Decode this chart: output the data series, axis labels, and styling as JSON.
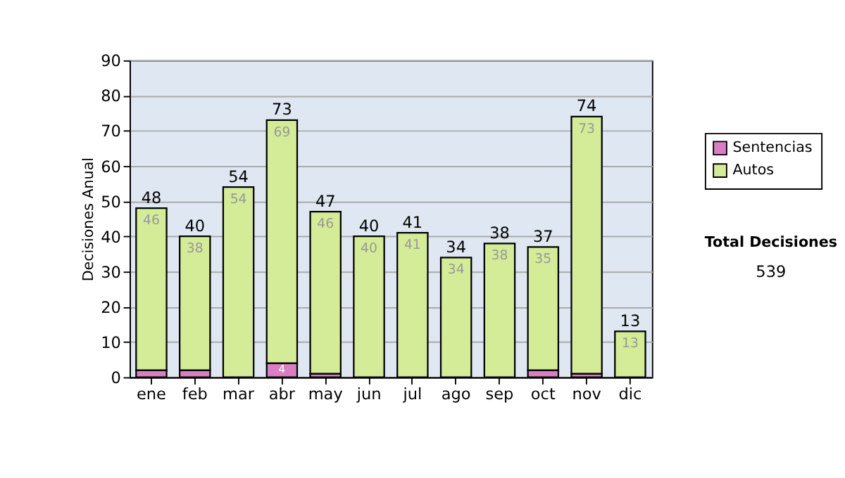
{
  "chart_data": {
    "type": "bar",
    "stacked": true,
    "ylabel": "Decisiones Anual",
    "categories": [
      "ene",
      "feb",
      "mar",
      "abr",
      "may",
      "jun",
      "jul",
      "ago",
      "sep",
      "oct",
      "nov",
      "dic"
    ],
    "series": [
      {
        "name": "Sentencias",
        "color": "#d87fc4",
        "values": [
          2,
          2,
          0,
          4,
          1,
          0,
          0,
          0,
          0,
          2,
          1,
          0
        ],
        "value_labels": [
          null,
          null,
          null,
          "4",
          null,
          null,
          null,
          null,
          null,
          null,
          null,
          null
        ]
      },
      {
        "name": "Autos",
        "color": "#d4eb98",
        "values": [
          46,
          38,
          54,
          69,
          46,
          40,
          41,
          34,
          38,
          35,
          73,
          13
        ],
        "value_labels": [
          "46",
          "38",
          "54",
          "69",
          "46",
          "40",
          "41",
          "34",
          "38",
          "35",
          "73",
          "13"
        ]
      }
    ],
    "totals": [
      "48",
      "40",
      "54",
      "73",
      "47",
      "40",
      "41",
      "34",
      "38",
      "37",
      "74",
      "13"
    ],
    "ylim": [
      0,
      90
    ],
    "yticks": [
      0,
      10,
      20,
      30,
      40,
      50,
      60,
      70,
      80,
      90
    ],
    "grid": "y",
    "legend": "right",
    "annotations": [
      "Total Decisiones",
      "539"
    ]
  }
}
